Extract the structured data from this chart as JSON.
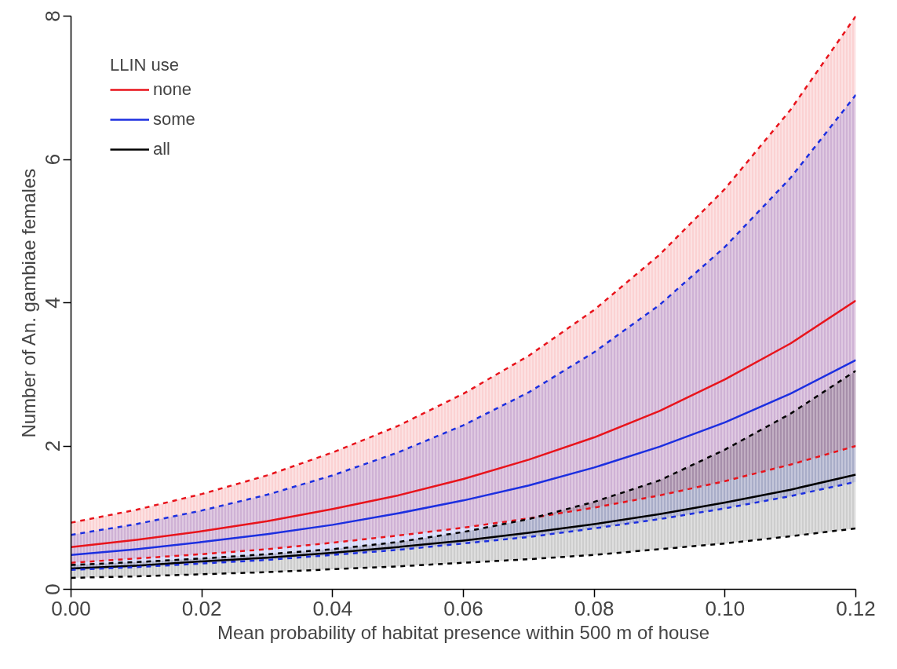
{
  "chart_data": {
    "type": "line",
    "xlabel": "Mean probability of habitat presence within 500 m of house",
    "ylabel": "Number of An. gambiae females",
    "legend_title": "LLIN use",
    "x": [
      0,
      0.01,
      0.02,
      0.03,
      0.04,
      0.05,
      0.06,
      0.07,
      0.08,
      0.09,
      0.1,
      0.11,
      0.12
    ],
    "xlim": [
      0,
      0.12
    ],
    "xticks": [
      {
        "value": 0,
        "label": "0.00"
      },
      {
        "value": 0.02,
        "label": "0.02"
      },
      {
        "value": 0.04,
        "label": "0.04"
      },
      {
        "value": 0.06,
        "label": "0.06"
      },
      {
        "value": 0.08,
        "label": "0.08"
      },
      {
        "value": 0.1,
        "label": "0.10"
      },
      {
        "value": 0.12,
        "label": "0.12"
      }
    ],
    "ylim": [
      0,
      8
    ],
    "yticks": [
      0,
      2,
      4,
      6,
      8
    ],
    "grid": false,
    "legend": "top left",
    "line_style": "solid",
    "series": [
      {
        "name": "none",
        "color": "#e8141c",
        "values": [
          0.59,
          0.69,
          0.81,
          0.95,
          1.12,
          1.31,
          1.54,
          1.81,
          2.12,
          2.49,
          2.93,
          3.43,
          4.03
        ],
        "lower": [
          0.37,
          0.43,
          0.49,
          0.56,
          0.65,
          0.75,
          0.86,
          0.99,
          1.14,
          1.31,
          1.51,
          1.74,
          2.0
        ],
        "upper": [
          0.93,
          1.11,
          1.33,
          1.59,
          1.91,
          2.28,
          2.73,
          3.26,
          3.9,
          4.67,
          5.59,
          6.69,
          8.0
        ]
      },
      {
        "name": "some",
        "color": "#1c2fe0",
        "values": [
          0.48,
          0.56,
          0.66,
          0.77,
          0.9,
          1.06,
          1.24,
          1.45,
          1.7,
          1.99,
          2.33,
          2.73,
          3.2
        ],
        "lower": [
          0.27,
          0.31,
          0.36,
          0.41,
          0.48,
          0.55,
          0.64,
          0.73,
          0.85,
          0.98,
          1.13,
          1.3,
          1.5
        ],
        "upper": [
          0.76,
          0.91,
          1.1,
          1.32,
          1.59,
          1.91,
          2.29,
          2.75,
          3.31,
          3.97,
          4.78,
          5.74,
          6.9
        ]
      },
      {
        "name": "all",
        "color": "#000000",
        "values": [
          0.29,
          0.33,
          0.39,
          0.44,
          0.51,
          0.59,
          0.68,
          0.79,
          0.91,
          1.05,
          1.21,
          1.39,
          1.6
        ],
        "lower": [
          0.16,
          0.18,
          0.21,
          0.24,
          0.28,
          0.32,
          0.37,
          0.42,
          0.48,
          0.56,
          0.64,
          0.74,
          0.85
        ],
        "upper": [
          0.34,
          0.38,
          0.43,
          0.49,
          0.56,
          0.66,
          0.8,
          0.98,
          1.22,
          1.52,
          1.95,
          2.45,
          3.05
        ]
      },
      {
        "type": "line",
        "line_style": "dashed",
        "color": "#e8141c",
        "values": [
          0.37,
          0.43,
          0.49,
          0.56,
          0.65,
          0.75,
          0.86,
          0.99,
          1.14,
          1.31,
          1.51,
          1.74,
          2.0
        ]
      },
      {
        "type": "line",
        "line_style": "dashed",
        "color": "#e8141c",
        "values": [
          0.93,
          1.11,
          1.33,
          1.59,
          1.91,
          2.28,
          2.73,
          3.26,
          3.9,
          4.67,
          5.59,
          6.69,
          8.0
        ]
      },
      {
        "type": "line",
        "line_style": "dashed",
        "color": "#1c2fe0",
        "values": [
          0.27,
          0.31,
          0.36,
          0.41,
          0.48,
          0.55,
          0.64,
          0.73,
          0.85,
          0.98,
          1.13,
          1.3,
          1.5
        ]
      },
      {
        "type": "line",
        "line_style": "dashed",
        "color": "#1c2fe0",
        "values": [
          0.76,
          0.91,
          1.1,
          1.32,
          1.59,
          1.91,
          2.29,
          2.75,
          3.31,
          3.97,
          4.78,
          5.74,
          6.9
        ]
      },
      {
        "type": "line",
        "line_style": "dashed",
        "color": "#000000",
        "values": [
          0.16,
          0.18,
          0.21,
          0.24,
          0.28,
          0.32,
          0.37,
          0.42,
          0.48,
          0.56,
          0.64,
          0.74,
          0.85
        ]
      },
      {
        "type": "line",
        "line_style": "dashed",
        "color": "#000000",
        "values": [
          0.34,
          0.38,
          0.43,
          0.49,
          0.56,
          0.66,
          0.8,
          0.98,
          1.22,
          1.52,
          1.95,
          2.45,
          3.05
        ]
      }
    ]
  }
}
